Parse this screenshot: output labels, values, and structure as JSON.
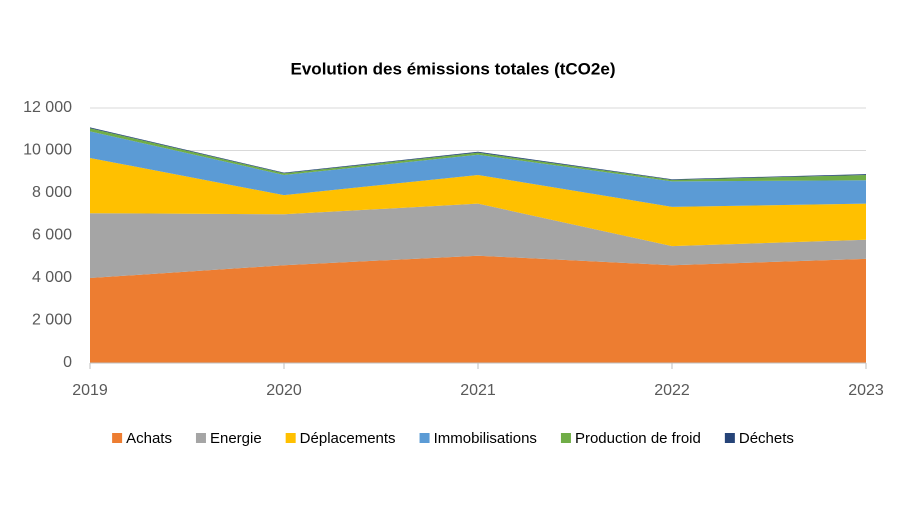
{
  "chart_data": {
    "type": "stacked-area",
    "title": "Evolution des émissions totales (tCO2e)",
    "x": [
      2019,
      2020,
      2021,
      2022,
      2023
    ],
    "xlim": [
      2019,
      2023
    ],
    "xticks": [
      2019,
      2020,
      2021,
      2022,
      2023
    ],
    "ylim": [
      0,
      12000
    ],
    "yticks": [
      0,
      {
        "value": 2000,
        "label": "2 000"
      },
      {
        "value": 4000,
        "label": "4 000"
      },
      {
        "value": 6000,
        "label": "6 000"
      },
      {
        "value": 8000,
        "label": "8 000"
      },
      {
        "value": 10000,
        "label": "10 000"
      },
      {
        "value": 12000,
        "label": "12 000"
      }
    ],
    "grid": true,
    "legend": "bottom",
    "series": [
      {
        "name": "Achats",
        "color": "#ed7d31",
        "values": [
          4000,
          4600,
          5050,
          4600,
          4900
        ]
      },
      {
        "name": "Energie",
        "color": "#a5a5a5",
        "values": [
          3050,
          2400,
          2450,
          900,
          900
        ]
      },
      {
        "name": "Déplacements",
        "color": "#ffc000",
        "values": [
          2600,
          900,
          1350,
          1850,
          1700
        ]
      },
      {
        "name": "Immobilisations",
        "color": "#5b9bd5",
        "values": [
          1250,
          950,
          950,
          1200,
          1100
        ]
      },
      {
        "name": "Production de froid",
        "color": "#70ad47",
        "values": [
          150,
          80,
          100,
          70,
          250
        ]
      },
      {
        "name": "Déchets",
        "color": "#264478",
        "values": [
          40,
          30,
          40,
          30,
          40
        ]
      }
    ]
  }
}
